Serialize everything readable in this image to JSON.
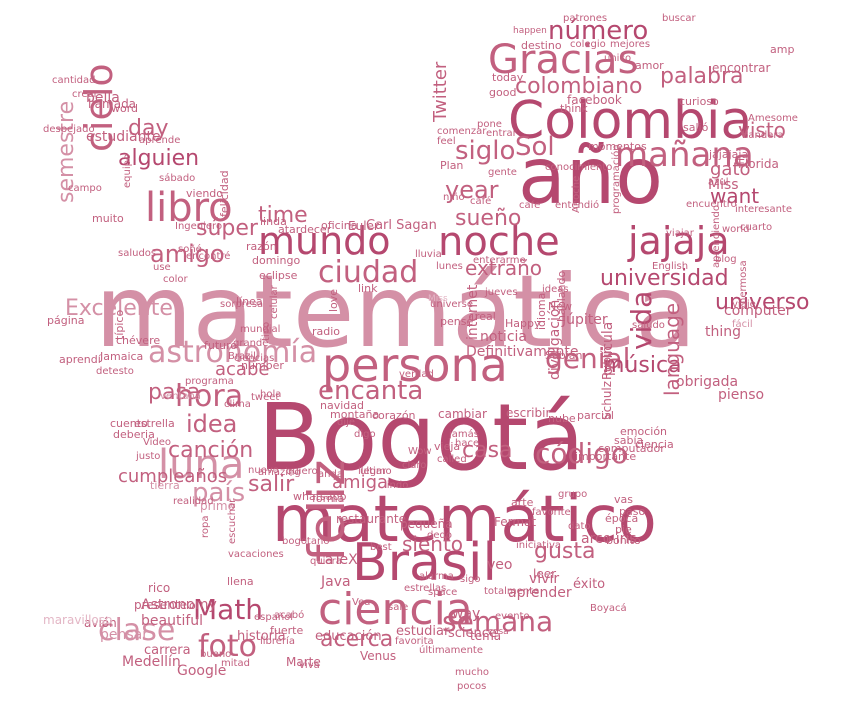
{
  "colors": {
    "deep": "#b5486f",
    "medium": "#c2607f",
    "light": "#d490a6",
    "pale": "#e3b6c5"
  },
  "words": [
    "matemática",
    "Bogotá",
    "año",
    "Colombia",
    "matemático",
    "Brasil",
    "persona",
    "feliz",
    "ciencia",
    "noche",
    "jajaja",
    "mundo",
    "Gracias",
    "libro",
    "cielo",
    "mañana",
    "luna",
    "astronomía",
    "ciudad",
    "genial",
    "universidad",
    "hora",
    "encanta",
    "código",
    "vida",
    "foto",
    "semana",
    "Math",
    "clase",
    "país",
    "número",
    "colombiano",
    "palabra",
    "amigo",
    "alguien",
    "Sol",
    "siglo",
    "year",
    "day",
    "want",
    "time",
    "visto",
    "Excelente",
    "sueño",
    "idea",
    "extraño",
    "música",
    "salir",
    "casa",
    "gusta",
    "acerca",
    "canción",
    "cumpleaños",
    "semestre",
    "language",
    "amiga",
    "súper",
    "acabé",
    "Twitter",
    "gato",
    "universo",
    "siento",
    "Carl Sagan",
    "Miss",
    "pasa",
    "sabía",
    "estudiante",
    "llamada",
    "bella",
    "word",
    "Definitivamente",
    "Júpiter",
    "noticia",
    "computer",
    "thing",
    "pienso",
    "obrigada",
    "divulgación",
    "película",
    "internet",
    "Florida",
    "Rubin",
    "Schulz",
    "LaTeX",
    "Java",
    "restaurante",
    "aprender",
    "veo",
    "leer",
    "vivir",
    "éxito",
    "bonito",
    "arco iris",
    "historia",
    "educación",
    "estudiar",
    "science",
    "way",
    "tema",
    "Venus",
    "Marte",
    "Google",
    "Medellín",
    "Astronomy",
    "carrera",
    "pensar",
    "beautiful",
    "avión",
    "presente",
    "rico",
    "maravilloso",
    "facebook",
    "curioso",
    "salió",
    "amor",
    "destino",
    "patrones",
    "buscar",
    "encontrar",
    "amp",
    "good",
    "today",
    "think",
    "colegio",
    "mejores",
    "único",
    "happen",
    "Plan",
    "conocimiento",
    "momentos",
    "gente",
    "programación",
    "jajajaja",
    "bandera",
    "saludo",
    "English",
    "blog",
    "hermosa",
    "aprendiendo",
    "interesante",
    "cuarto",
    "world",
    "viajar",
    "encuentro",
    "azul",
    "Miss",
    "cambiar",
    "escribir",
    "lindo",
    "pequeña",
    "Fermat",
    "arte",
    "favorite",
    "paso",
    "época",
    "pie",
    "vas",
    "dato",
    "grupo",
    "dedo",
    "iniciativa",
    "evento",
    "Boyacá",
    "fuerte",
    "llena",
    "cosa",
    "lol",
    "mitad",
    "librería",
    "fácil",
    "viaje",
    "Amesome",
    "cantidad",
    "despejado",
    "crear",
    "aprende",
    "sábado",
    "campo",
    "equipo",
    "muito",
    "viendo",
    "linda",
    "felicidad",
    "atardecer",
    "oficina",
    "Euler",
    "razón",
    "domingo",
    "eclipse",
    "number",
    "love",
    "link",
    "radio",
    "futuro",
    "chévere",
    "Jamaica",
    "aprendí",
    "página",
    "línea",
    "navidad",
    "montaña",
    "típico",
    "cuento",
    "deberia",
    "estrella",
    "primo",
    "tierra",
    "realidad",
    "ropa",
    "vacaciones",
    "escuchar",
    "español",
    "viva",
    "quiera",
    "bogotano",
    "estrellas",
    "tipo",
    "ciencias",
    "Brazil",
    "celular",
    "mundial",
    "grande",
    "programa",
    "ventana",
    "clima",
    "tweet",
    "justo",
    "Video",
    "Sabian",
    "New",
    "Happy",
    "real",
    "pensé",
    "idioma",
    "hablando",
    "emoción",
    "computador",
    "importante",
    "ciencia",
    "parcial",
    "nube",
    "corazón",
    "vieja",
    "whatsapp",
    "forma",
    "llegar",
    "anda",
    "quiero",
    "best",
    "space",
    "alarma",
    "totalmente",
    "sigo",
    "acabó",
    "favorita",
    "últimamente",
    "Vea",
    "sale",
    "ideas",
    "lunes",
    "jueves",
    "enterarme",
    "comenzar",
    "feel",
    "pone",
    "entrar",
    "niño",
    "café",
    "cafe",
    "entendió",
    "Anoche",
    "soñé",
    "encontré",
    "saludos",
    "Ingeniero",
    "use",
    "color",
    "sorpresa",
    "lluvia",
    "universe",
    "detesto",
    "verdad",
    "jamás",
    "hace",
    "Wow",
    "dije",
    "digo",
    "called",
    "claro",
    "ultimo",
    "bueno",
    "mucho",
    "pocos",
    "nuevo",
    "amazing",
    "hola",
    "vale",
    "mañana",
    "tarde",
    "ciudades"
  ]
}
